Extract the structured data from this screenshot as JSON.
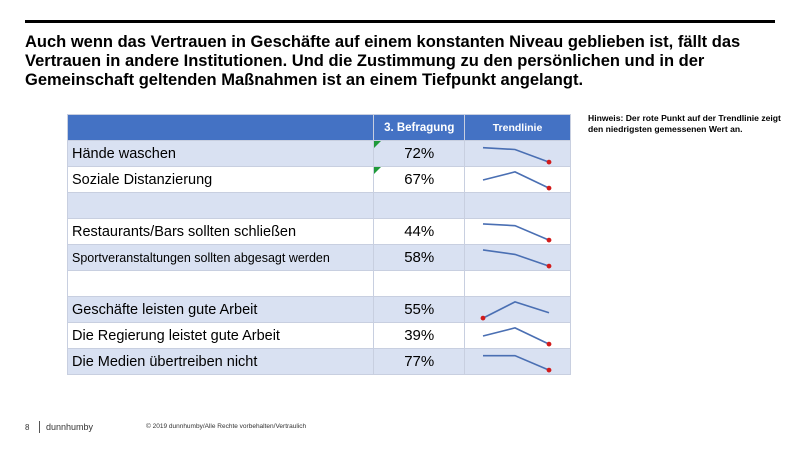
{
  "headline": "Auch wenn das Vertrauen in Geschäfte auf einem konstanten Niveau geblieben ist, fällt das Vertrauen in andere Institutionen. Und die Zustimmung zu den persönlichen und in der Gemeinschaft geltenden Maßnahmen ist an einem Tiefpunkt angelangt.",
  "note": "Hinweis: Der rote Punkt auf der Trendlinie zeigt den niedrigsten gemessenen Wert an.",
  "table": {
    "headers": {
      "label": "",
      "value": "3. Befragung",
      "trend": "Trendlinie"
    },
    "rows": [
      {
        "label": "Hände waschen",
        "value": "72%",
        "trend": [
          0.85,
          0.75,
          0.05
        ],
        "flag": true
      },
      {
        "label": "Soziale Distanzierung",
        "value": "67%",
        "trend": [
          0.5,
          0.95,
          0.05
        ],
        "flag": true
      },
      {
        "label": "",
        "value": "",
        "trend": null
      },
      {
        "label": "Restaurants/Bars sollten schließen",
        "value": "44%",
        "trend": [
          0.95,
          0.85,
          0.05
        ]
      },
      {
        "label": "Sportveranstaltungen sollten abgesagt werden",
        "value": "58%",
        "trend": [
          0.95,
          0.7,
          0.05
        ],
        "small": true
      },
      {
        "label": "",
        "value": "",
        "trend": null
      },
      {
        "label": "Geschäfte leisten gute Arbeit",
        "value": "55%",
        "trend": [
          0.05,
          0.95,
          0.35
        ]
      },
      {
        "label": "Die Regierung leistet gute Arbeit",
        "value": "39%",
        "trend": [
          0.5,
          0.95,
          0.05
        ]
      },
      {
        "label": "Die Medien übertreiben nicht",
        "value": "77%",
        "trend": [
          0.85,
          0.85,
          0.05
        ]
      }
    ]
  },
  "colors": {
    "accent": "#4472c4",
    "shaded_row": "#d9e1f2",
    "trend_line": "#4a6fb3",
    "min_marker": "#d11b1b",
    "flag": "#1f9a3a"
  },
  "footer": {
    "page": "8",
    "brand": "dunnhumby",
    "copyright": "© 2019 dunnhumby/Alle Rechte vorbehalten/Vertraulich"
  }
}
